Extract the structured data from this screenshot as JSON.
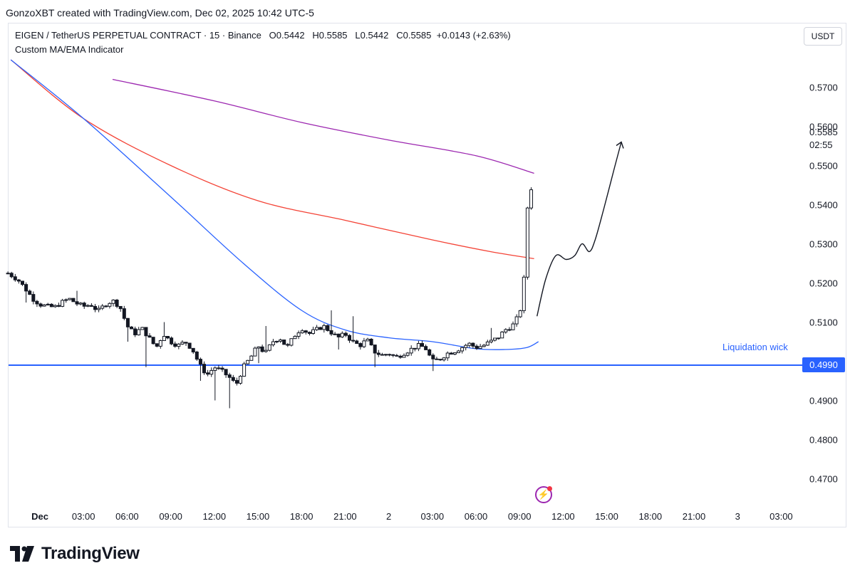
{
  "credit": "GonzoXBT created with TradingView.com, Dec 02, 2025 10:42 UTC-5",
  "legend": {
    "title": "EIGEN / TetherUS PERPETUAL CONTRACT · 15 · Binance",
    "open": "O0.5442",
    "high": "H0.5585",
    "low": "L0.5442",
    "close": "C0.5585",
    "change": "+0.0143 (+2.63%)",
    "indicator": "Custom MA/EMA Indicator"
  },
  "currency": "USDT",
  "price_label": {
    "last": "0.5585",
    "countdown": "02:55"
  },
  "level_badge": "0.4990",
  "annotation": "Liquidation wick",
  "brand": "TradingView",
  "icons": {
    "lightning": "lightning-icon",
    "logo": "tradingview-logo-icon"
  },
  "colors": {
    "ma_purple": "#9c27b0",
    "ma_red": "#f44336",
    "ma_blue": "#2962ff",
    "level": "#2962ff",
    "candle": "#131722"
  },
  "chart_data": {
    "type": "candlestick",
    "interval": "15",
    "y_ticks": [
      "0.5700",
      "0.5600",
      "0.5500",
      "0.5400",
      "0.5300",
      "0.5200",
      "0.5100",
      "0.5000",
      "0.4900",
      "0.4800",
      "0.4700"
    ],
    "y_tick_values": [
      0.57,
      0.56,
      0.55,
      0.54,
      0.53,
      0.52,
      0.51,
      0.5,
      0.49,
      0.48,
      0.47
    ],
    "x_ticks": [
      {
        "label": "Dec",
        "hour": 0,
        "bold": true
      },
      {
        "label": "03:00",
        "hour": 3
      },
      {
        "label": "06:00",
        "hour": 6
      },
      {
        "label": "09:00",
        "hour": 9
      },
      {
        "label": "12:00",
        "hour": 12
      },
      {
        "label": "15:00",
        "hour": 15
      },
      {
        "label": "18:00",
        "hour": 18
      },
      {
        "label": "21:00",
        "hour": 21
      },
      {
        "label": "2",
        "hour": 24
      },
      {
        "label": "03:00",
        "hour": 27
      },
      {
        "label": "06:00",
        "hour": 30
      },
      {
        "label": "09:00",
        "hour": 33
      },
      {
        "label": "12:00",
        "hour": 36
      },
      {
        "label": "15:00",
        "hour": 39
      },
      {
        "label": "18:00",
        "hour": 42
      },
      {
        "label": "21:00",
        "hour": 45
      },
      {
        "label": "3",
        "hour": 48
      },
      {
        "label": "03:00",
        "hour": 51
      }
    ],
    "horizontal_level": 0.499,
    "price_path": [
      [
        -2.2,
        0.5225
      ],
      [
        -1.5,
        0.5208
      ],
      [
        -1.0,
        0.5185
      ],
      [
        -0.5,
        0.516
      ],
      [
        0,
        0.5145
      ],
      [
        0.5,
        0.514
      ],
      [
        1.0,
        0.5138
      ],
      [
        1.5,
        0.515
      ],
      [
        2.0,
        0.516
      ],
      [
        2.5,
        0.5148
      ],
      [
        3.0,
        0.514
      ],
      [
        3.5,
        0.5145
      ],
      [
        4.0,
        0.5128
      ],
      [
        4.5,
        0.5145
      ],
      [
        5.0,
        0.5155
      ],
      [
        5.5,
        0.514
      ],
      [
        6.0,
        0.509
      ],
      [
        6.5,
        0.507
      ],
      [
        7.0,
        0.5085
      ],
      [
        7.5,
        0.506
      ],
      [
        8.0,
        0.5035
      ],
      [
        8.5,
        0.507
      ],
      [
        9.0,
        0.505
      ],
      [
        9.5,
        0.504
      ],
      [
        10.0,
        0.505
      ],
      [
        10.5,
        0.503
      ],
      [
        11.0,
        0.499
      ],
      [
        11.5,
        0.4965
      ],
      [
        12.0,
        0.4985
      ],
      [
        12.5,
        0.4975
      ],
      [
        13.0,
        0.496
      ],
      [
        13.5,
        0.494
      ],
      [
        14.0,
        0.4985
      ],
      [
        14.5,
        0.501
      ],
      [
        15.0,
        0.504
      ],
      [
        15.5,
        0.502
      ],
      [
        16.0,
        0.505
      ],
      [
        16.5,
        0.506
      ],
      [
        17.0,
        0.5035
      ],
      [
        17.5,
        0.5065
      ],
      [
        18.0,
        0.5085
      ],
      [
        18.5,
        0.507
      ],
      [
        19.0,
        0.508
      ],
      [
        19.5,
        0.509
      ],
      [
        20.0,
        0.5075
      ],
      [
        20.5,
        0.506
      ],
      [
        21.0,
        0.507
      ],
      [
        21.5,
        0.505
      ],
      [
        22.0,
        0.504
      ],
      [
        22.5,
        0.5055
      ],
      [
        23.0,
        0.5025
      ],
      [
        23.5,
        0.5015
      ],
      [
        24.0,
        0.502
      ],
      [
        24.5,
        0.501
      ],
      [
        25.0,
        0.502
      ],
      [
        25.5,
        0.503
      ],
      [
        26.0,
        0.504
      ],
      [
        26.5,
        0.5035
      ],
      [
        27.0,
        0.5
      ],
      [
        27.5,
        0.5005
      ],
      [
        28.0,
        0.502
      ],
      [
        28.5,
        0.5025
      ],
      [
        29.0,
        0.5035
      ],
      [
        29.5,
        0.5045
      ],
      [
        30.0,
        0.5035
      ],
      [
        30.5,
        0.504
      ],
      [
        31.0,
        0.505
      ],
      [
        31.5,
        0.506
      ],
      [
        32.0,
        0.508
      ],
      [
        32.5,
        0.509
      ],
      [
        33.0,
        0.512
      ],
      [
        33.2,
        0.517
      ],
      [
        33.4,
        0.525
      ],
      [
        33.6,
        0.544
      ],
      [
        33.8,
        0.5442
      ],
      [
        34.0,
        0.5585
      ]
    ],
    "lows": [
      [
        -1.0,
        0.515
      ],
      [
        6.0,
        0.505
      ],
      [
        7.2,
        0.4985
      ],
      [
        11.0,
        0.495
      ],
      [
        12.0,
        0.49
      ],
      [
        13.0,
        0.488
      ],
      [
        15.0,
        0.4995
      ],
      [
        20.5,
        0.503
      ],
      [
        23.0,
        0.4985
      ],
      [
        27.0,
        0.4975
      ]
    ],
    "highs": [
      [
        2.5,
        0.518
      ],
      [
        8.5,
        0.51
      ],
      [
        15.5,
        0.509
      ],
      [
        20.0,
        0.513
      ],
      [
        21.5,
        0.5115
      ],
      [
        31.0,
        0.5085
      ]
    ],
    "ma_series": [
      {
        "color": "purple",
        "points": [
          [
            5,
            0.572
          ],
          [
            12,
            0.5665
          ],
          [
            18,
            0.561
          ],
          [
            24,
            0.5565
          ],
          [
            30,
            0.5525
          ],
          [
            34,
            0.548
          ]
        ]
      },
      {
        "color": "red",
        "points": [
          [
            -2,
            0.577
          ],
          [
            3,
            0.562
          ],
          [
            9,
            0.55
          ],
          [
            15,
            0.541
          ],
          [
            21,
            0.536
          ],
          [
            27,
            0.531
          ],
          [
            31,
            0.528
          ],
          [
            34,
            0.5262
          ]
        ]
      },
      {
        "color": "blue",
        "points": [
          [
            -2,
            0.577
          ],
          [
            3,
            0.562
          ],
          [
            9,
            0.542
          ],
          [
            14,
            0.525
          ],
          [
            18,
            0.513
          ],
          [
            21,
            0.508
          ],
          [
            24,
            0.506
          ],
          [
            27,
            0.505
          ],
          [
            30,
            0.5032
          ],
          [
            32,
            0.503
          ],
          [
            33.5,
            0.5035
          ],
          [
            34.3,
            0.505
          ]
        ]
      }
    ],
    "projection": [
      [
        34.2,
        0.5115
      ],
      [
        34.8,
        0.521
      ],
      [
        35.5,
        0.527
      ],
      [
        36.2,
        0.526
      ],
      [
        36.8,
        0.527
      ],
      [
        37.3,
        0.53
      ],
      [
        37.8,
        0.528
      ],
      [
        38.2,
        0.531
      ],
      [
        38.8,
        0.539
      ],
      [
        39.5,
        0.549
      ],
      [
        40.0,
        0.556
      ]
    ]
  }
}
